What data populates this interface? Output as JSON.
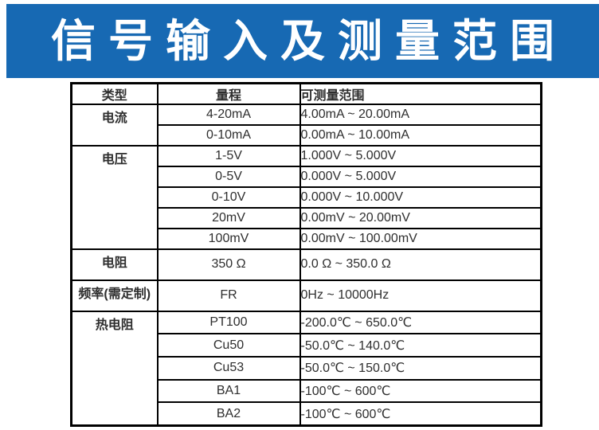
{
  "banner": {
    "title": "信号输入及测量范围",
    "bg_color": "#1769B3",
    "text_color": "#FFFFFF"
  },
  "table": {
    "border_color": "#000000",
    "text_color": "#2E2E2E",
    "headers": {
      "type": "类型",
      "range": "量程",
      "measurable": "可测量范围"
    },
    "groups": [
      {
        "type": "电流",
        "rows": [
          {
            "range": "4-20mA",
            "measurable": "4.00mA ~ 20.00mA"
          },
          {
            "range": "0-10mA",
            "measurable": "0.00mA ~ 10.00mA"
          }
        ]
      },
      {
        "type": "电压",
        "rows": [
          {
            "range": "1-5V",
            "measurable": "1.000V ~ 5.000V"
          },
          {
            "range": "0-5V",
            "measurable": "0.000V ~ 5.000V"
          },
          {
            "range": "0-10V",
            "measurable": "0.000V ~ 10.000V"
          },
          {
            "range": "20mV",
            "measurable": "0.00mV ~ 20.00mV"
          },
          {
            "range": "100mV",
            "measurable": "0.00mV ~ 100.00mV"
          }
        ]
      },
      {
        "type": "电阻",
        "rows": [
          {
            "range": "350 Ω",
            "measurable": "0.0 Ω ~ 350.0 Ω"
          }
        ]
      },
      {
        "type": "频率(需定制)",
        "rows": [
          {
            "range": "FR",
            "measurable": "0Hz ~ 10000Hz"
          }
        ]
      },
      {
        "type": "热电阻",
        "rows": [
          {
            "range": "PT100",
            "measurable": "-200.0℃ ~ 650.0℃"
          },
          {
            "range": "Cu50",
            "measurable": "-50.0℃ ~ 140.0℃"
          },
          {
            "range": "Cu53",
            "measurable": "-50.0℃ ~ 150.0℃"
          },
          {
            "range": "BA1",
            "measurable": "-100℃ ~ 600℃"
          },
          {
            "range": "BA2",
            "measurable": "-100℃ ~ 600℃"
          }
        ]
      }
    ]
  }
}
